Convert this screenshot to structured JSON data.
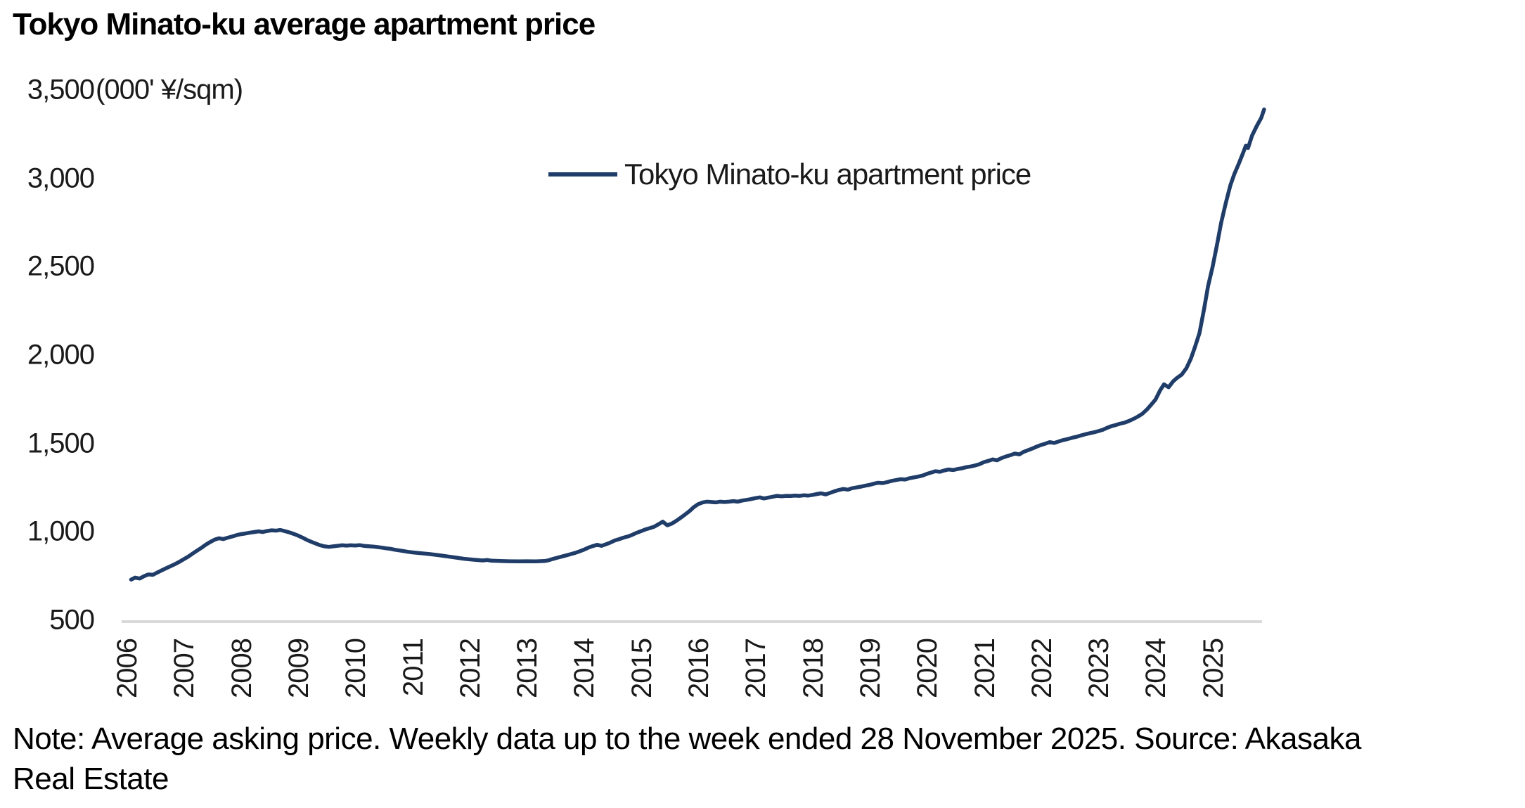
{
  "title": "Tokyo Minato-ku average apartment price",
  "y_axis": {
    "unit_label": "(000' ¥/sqm)",
    "tick_labels": [
      "500",
      "1,000",
      "1,500",
      "2,000",
      "2,500",
      "3,000",
      "3,500"
    ],
    "tick_values": [
      500,
      1000,
      1500,
      2000,
      2500,
      3000,
      3500
    ]
  },
  "x_axis": {
    "tick_labels": [
      "2006",
      "2007",
      "2008",
      "2009",
      "2010",
      "2011",
      "2012",
      "2013",
      "2014",
      "2015",
      "2016",
      "2017",
      "2018",
      "2019",
      "2020",
      "2021",
      "2022",
      "2023",
      "2024",
      "2025"
    ],
    "tick_values": [
      2006,
      2007,
      2008,
      2009,
      2010,
      2011,
      2012,
      2013,
      2014,
      2015,
      2016,
      2017,
      2018,
      2019,
      2020,
      2021,
      2022,
      2023,
      2024,
      2025
    ]
  },
  "legend": {
    "label": "Tokyo Minato-ku apartment price"
  },
  "note": {
    "line1": "Note: Average asking price. Weekly data up to the week ended 28 November 2025. Source: Akasaka",
    "line2": "Real Estate",
    "full": "Note: Average asking price. Weekly data up to the week ended 28 November 2025. Source: Akasaka Real Estate"
  },
  "colors": {
    "line": "#1f3d68",
    "axis_line": "#d9d9d9",
    "text": "#000000"
  },
  "chart_data": {
    "type": "line",
    "title": "Tokyo Minato-ku average apartment price",
    "ylabel": "(000' ¥/sqm)",
    "xlabel": "",
    "ylim": [
      500,
      3500
    ],
    "ytick_step": 500,
    "xlim": [
      2006,
      2026
    ],
    "grid": false,
    "legend_position": "upper-center",
    "frequency": "weekly",
    "last_observation": "week ended 28 November 2025",
    "series": [
      {
        "name": "Tokyo Minato-ku apartment price",
        "points": [
          [
            2006.08,
            730
          ],
          [
            2006.15,
            741
          ],
          [
            2006.23,
            736
          ],
          [
            2006.31,
            750
          ],
          [
            2006.38,
            759
          ],
          [
            2006.46,
            757
          ],
          [
            2006.54,
            770
          ],
          [
            2006.62,
            783
          ],
          [
            2006.69,
            794
          ],
          [
            2006.77,
            806
          ],
          [
            2006.85,
            818
          ],
          [
            2006.92,
            830
          ],
          [
            2007.0,
            845
          ],
          [
            2007.08,
            860
          ],
          [
            2007.15,
            876
          ],
          [
            2007.23,
            893
          ],
          [
            2007.31,
            910
          ],
          [
            2007.38,
            926
          ],
          [
            2007.46,
            942
          ],
          [
            2007.54,
            956
          ],
          [
            2007.62,
            964
          ],
          [
            2007.69,
            959
          ],
          [
            2007.77,
            967
          ],
          [
            2007.85,
            974
          ],
          [
            2007.92,
            981
          ],
          [
            2008.0,
            987
          ],
          [
            2008.08,
            991
          ],
          [
            2008.15,
            995
          ],
          [
            2008.23,
            999
          ],
          [
            2008.31,
            1003
          ],
          [
            2008.38,
            999
          ],
          [
            2008.46,
            1005
          ],
          [
            2008.54,
            1009
          ],
          [
            2008.62,
            1007
          ],
          [
            2008.69,
            1011
          ],
          [
            2008.77,
            1004
          ],
          [
            2008.85,
            997
          ],
          [
            2008.92,
            989
          ],
          [
            2009.0,
            979
          ],
          [
            2009.08,
            967
          ],
          [
            2009.15,
            955
          ],
          [
            2009.23,
            944
          ],
          [
            2009.31,
            934
          ],
          [
            2009.38,
            925
          ],
          [
            2009.46,
            918
          ],
          [
            2009.54,
            915
          ],
          [
            2009.62,
            918
          ],
          [
            2009.69,
            921
          ],
          [
            2009.77,
            924
          ],
          [
            2009.85,
            922
          ],
          [
            2009.92,
            924
          ],
          [
            2010.0,
            923
          ],
          [
            2010.08,
            925
          ],
          [
            2010.15,
            921
          ],
          [
            2010.23,
            919
          ],
          [
            2010.31,
            917
          ],
          [
            2010.38,
            914
          ],
          [
            2010.46,
            911
          ],
          [
            2010.54,
            907
          ],
          [
            2010.62,
            904
          ],
          [
            2010.69,
            899
          ],
          [
            2010.77,
            895
          ],
          [
            2010.85,
            891
          ],
          [
            2010.92,
            887
          ],
          [
            2011.0,
            884
          ],
          [
            2011.15,
            879
          ],
          [
            2011.31,
            874
          ],
          [
            2011.46,
            868
          ],
          [
            2011.62,
            861
          ],
          [
            2011.77,
            854
          ],
          [
            2011.92,
            847
          ],
          [
            2012.08,
            842
          ],
          [
            2012.23,
            838
          ],
          [
            2012.31,
            841
          ],
          [
            2012.38,
            837
          ],
          [
            2012.54,
            835
          ],
          [
            2012.69,
            834
          ],
          [
            2012.85,
            833
          ],
          [
            2013.0,
            834
          ],
          [
            2013.15,
            833
          ],
          [
            2013.31,
            835
          ],
          [
            2013.38,
            839
          ],
          [
            2013.46,
            847
          ],
          [
            2013.54,
            854
          ],
          [
            2013.62,
            861
          ],
          [
            2013.69,
            867
          ],
          [
            2013.77,
            874
          ],
          [
            2013.85,
            881
          ],
          [
            2013.92,
            889
          ],
          [
            2014.0,
            899
          ],
          [
            2014.08,
            911
          ],
          [
            2014.15,
            919
          ],
          [
            2014.23,
            927
          ],
          [
            2014.31,
            921
          ],
          [
            2014.38,
            929
          ],
          [
            2014.46,
            939
          ],
          [
            2014.54,
            951
          ],
          [
            2014.62,
            959
          ],
          [
            2014.69,
            967
          ],
          [
            2014.77,
            974
          ],
          [
            2014.85,
            984
          ],
          [
            2014.92,
            994
          ],
          [
            2015.0,
            1004
          ],
          [
            2015.08,
            1014
          ],
          [
            2015.15,
            1021
          ],
          [
            2015.23,
            1029
          ],
          [
            2015.31,
            1044
          ],
          [
            2015.38,
            1058
          ],
          [
            2015.46,
            1037
          ],
          [
            2015.54,
            1047
          ],
          [
            2015.62,
            1063
          ],
          [
            2015.69,
            1079
          ],
          [
            2015.77,
            1098
          ],
          [
            2015.85,
            1118
          ],
          [
            2015.92,
            1139
          ],
          [
            2016.0,
            1157
          ],
          [
            2016.08,
            1167
          ],
          [
            2016.15,
            1171
          ],
          [
            2016.23,
            1169
          ],
          [
            2016.31,
            1167
          ],
          [
            2016.38,
            1171
          ],
          [
            2016.46,
            1169
          ],
          [
            2016.54,
            1171
          ],
          [
            2016.62,
            1174
          ],
          [
            2016.69,
            1171
          ],
          [
            2016.77,
            1177
          ],
          [
            2016.85,
            1181
          ],
          [
            2016.92,
            1185
          ],
          [
            2017.0,
            1191
          ],
          [
            2017.08,
            1195
          ],
          [
            2017.15,
            1189
          ],
          [
            2017.23,
            1194
          ],
          [
            2017.31,
            1199
          ],
          [
            2017.38,
            1204
          ],
          [
            2017.46,
            1201
          ],
          [
            2017.54,
            1204
          ],
          [
            2017.62,
            1203
          ],
          [
            2017.69,
            1205
          ],
          [
            2017.77,
            1204
          ],
          [
            2017.85,
            1207
          ],
          [
            2017.92,
            1205
          ],
          [
            2018.0,
            1209
          ],
          [
            2018.08,
            1214
          ],
          [
            2018.15,
            1218
          ],
          [
            2018.23,
            1212
          ],
          [
            2018.31,
            1221
          ],
          [
            2018.38,
            1229
          ],
          [
            2018.46,
            1237
          ],
          [
            2018.54,
            1243
          ],
          [
            2018.62,
            1239
          ],
          [
            2018.69,
            1247
          ],
          [
            2018.77,
            1251
          ],
          [
            2018.85,
            1256
          ],
          [
            2018.92,
            1261
          ],
          [
            2019.0,
            1266
          ],
          [
            2019.08,
            1273
          ],
          [
            2019.15,
            1278
          ],
          [
            2019.23,
            1276
          ],
          [
            2019.31,
            1282
          ],
          [
            2019.38,
            1288
          ],
          [
            2019.46,
            1293
          ],
          [
            2019.54,
            1298
          ],
          [
            2019.62,
            1296
          ],
          [
            2019.69,
            1303
          ],
          [
            2019.77,
            1308
          ],
          [
            2019.85,
            1313
          ],
          [
            2019.92,
            1318
          ],
          [
            2020.0,
            1328
          ],
          [
            2020.08,
            1336
          ],
          [
            2020.15,
            1343
          ],
          [
            2020.23,
            1340
          ],
          [
            2020.31,
            1348
          ],
          [
            2020.38,
            1353
          ],
          [
            2020.46,
            1350
          ],
          [
            2020.54,
            1356
          ],
          [
            2020.62,
            1360
          ],
          [
            2020.69,
            1366
          ],
          [
            2020.77,
            1370
          ],
          [
            2020.85,
            1376
          ],
          [
            2020.92,
            1383
          ],
          [
            2021.0,
            1395
          ],
          [
            2021.08,
            1402
          ],
          [
            2021.15,
            1410
          ],
          [
            2021.23,
            1405
          ],
          [
            2021.31,
            1418
          ],
          [
            2021.38,
            1426
          ],
          [
            2021.46,
            1434
          ],
          [
            2021.54,
            1443
          ],
          [
            2021.62,
            1438
          ],
          [
            2021.69,
            1452
          ],
          [
            2021.77,
            1462
          ],
          [
            2021.85,
            1472
          ],
          [
            2021.92,
            1482
          ],
          [
            2022.0,
            1492
          ],
          [
            2022.08,
            1500
          ],
          [
            2022.15,
            1508
          ],
          [
            2022.23,
            1503
          ],
          [
            2022.31,
            1512
          ],
          [
            2022.38,
            1519
          ],
          [
            2022.46,
            1525
          ],
          [
            2022.54,
            1532
          ],
          [
            2022.62,
            1538
          ],
          [
            2022.69,
            1545
          ],
          [
            2022.77,
            1552
          ],
          [
            2022.85,
            1558
          ],
          [
            2022.92,
            1563
          ],
          [
            2023.0,
            1570
          ],
          [
            2023.08,
            1578
          ],
          [
            2023.15,
            1588
          ],
          [
            2023.23,
            1598
          ],
          [
            2023.31,
            1605
          ],
          [
            2023.38,
            1612
          ],
          [
            2023.46,
            1618
          ],
          [
            2023.54,
            1628
          ],
          [
            2023.62,
            1640
          ],
          [
            2023.69,
            1652
          ],
          [
            2023.77,
            1668
          ],
          [
            2023.85,
            1692
          ],
          [
            2023.92,
            1718
          ],
          [
            2024.0,
            1748
          ],
          [
            2024.08,
            1800
          ],
          [
            2024.15,
            1835
          ],
          [
            2024.23,
            1818
          ],
          [
            2024.31,
            1852
          ],
          [
            2024.38,
            1872
          ],
          [
            2024.46,
            1890
          ],
          [
            2024.54,
            1925
          ],
          [
            2024.62,
            1980
          ],
          [
            2024.69,
            2045
          ],
          [
            2024.77,
            2125
          ],
          [
            2024.85,
            2260
          ],
          [
            2024.92,
            2390
          ],
          [
            2025.0,
            2500
          ],
          [
            2025.08,
            2630
          ],
          [
            2025.15,
            2750
          ],
          [
            2025.23,
            2860
          ],
          [
            2025.31,
            2960
          ],
          [
            2025.38,
            3025
          ],
          [
            2025.46,
            3085
          ],
          [
            2025.54,
            3150
          ],
          [
            2025.58,
            3185
          ],
          [
            2025.62,
            3172
          ],
          [
            2025.69,
            3242
          ],
          [
            2025.77,
            3295
          ],
          [
            2025.85,
            3342
          ],
          [
            2025.9,
            3390
          ]
        ]
      }
    ]
  }
}
